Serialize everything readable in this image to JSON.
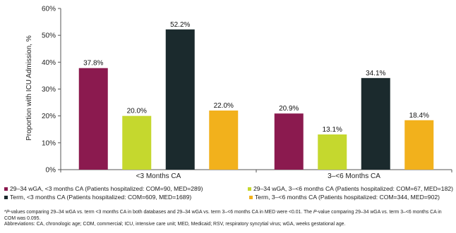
{
  "chart_data": {
    "type": "bar",
    "ylabel": "Proportion with ICU Admission, %",
    "ylim": [
      0,
      60
    ],
    "yticks": [
      "0%",
      "10%",
      "20%",
      "30%",
      "40%",
      "50%",
      "60%"
    ],
    "categories": [
      "<3 Months CA",
      "3–<6 Months CA"
    ],
    "series": [
      {
        "name": "29–34 wGA, <3 months CA (Patients hospitalized: COM=90, MED=289)",
        "color": "#8b1a4f",
        "values": [
          37.8,
          20.9
        ],
        "labels": [
          "37.8%",
          "20.9%"
        ]
      },
      {
        "name": "29–34 wGA, 3–<6 months CA (Patients hospitalized: COM=67, MED=182)",
        "color": "#c5d82e",
        "values": [
          20.0,
          13.1
        ],
        "labels": [
          "20.0%",
          "13.1%"
        ]
      },
      {
        "name": "Term, <3 months CA (Patients hospitalized: COM=609, MED=1689)",
        "color": "#1b2a2d",
        "values": [
          52.2,
          34.1
        ],
        "labels": [
          "52.2%",
          "34.1%"
        ]
      },
      {
        "name": "Term, 3–<6 months CA (Patients hospitalized: COM=344, MED=902)",
        "color": "#f2b11c",
        "values": [
          22.0,
          18.4
        ],
        "labels": [
          "22.0%",
          "18.4%"
        ]
      }
    ],
    "grid": false
  },
  "footnote": {
    "line1_italic": "P",
    "line1_rest": "-values comparing 29–34 wGA vs. term <3 months CA in both databases and 29–34 wGA vs. term 3–<6 months CA in MED were <0.01. The ",
    "line1_italic2": "P",
    "line1_end": "-value comparing 29–34 wGA vs. term 3–<6 months CA in COM was 0.095.",
    "line1_prefix": "*",
    "abbreviations": "Abbreviations: CA, chronologic age; COM, commercial; ICU, intensive care unit; MED, Medicaid; RSV, respiratory syncytial virus; wGA, weeks gestational age."
  }
}
